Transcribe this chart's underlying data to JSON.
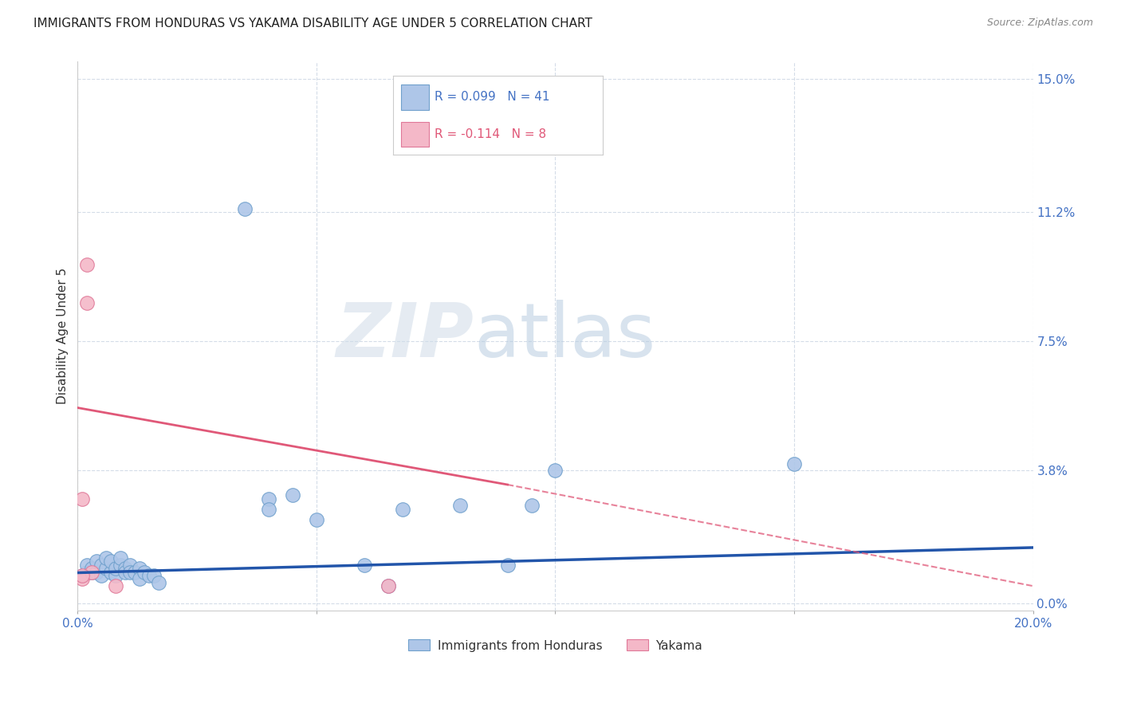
{
  "title": "IMMIGRANTS FROM HONDURAS VS YAKAMA DISABILITY AGE UNDER 5 CORRELATION CHART",
  "source": "Source: ZipAtlas.com",
  "ylabel": "Disability Age Under 5",
  "xlim": [
    0.0,
    0.2
  ],
  "ylim": [
    -0.002,
    0.155
  ],
  "ytick_values": [
    0.0,
    0.038,
    0.075,
    0.112,
    0.15
  ],
  "xtick_values": [
    0.0,
    0.05,
    0.1,
    0.15,
    0.2
  ],
  "xtick_labels": [
    "0.0%",
    "",
    "",
    "",
    "20.0%"
  ],
  "legend_entries": [
    {
      "label": "Immigrants from Honduras",
      "R": 0.099,
      "N": 41,
      "color": "#aec6e8",
      "edgecolor": "#6fa0cc"
    },
    {
      "label": "Yakama",
      "R": -0.114,
      "N": 8,
      "color": "#f4b8c8",
      "edgecolor": "#e07898"
    }
  ],
  "blue_scatter": [
    [
      0.001,
      0.008
    ],
    [
      0.002,
      0.009
    ],
    [
      0.002,
      0.011
    ],
    [
      0.003,
      0.009
    ],
    [
      0.003,
      0.01
    ],
    [
      0.004,
      0.009
    ],
    [
      0.004,
      0.012
    ],
    [
      0.005,
      0.008
    ],
    [
      0.005,
      0.011
    ],
    [
      0.006,
      0.01
    ],
    [
      0.006,
      0.013
    ],
    [
      0.007,
      0.009
    ],
    [
      0.007,
      0.012
    ],
    [
      0.008,
      0.008
    ],
    [
      0.008,
      0.01
    ],
    [
      0.009,
      0.011
    ],
    [
      0.009,
      0.013
    ],
    [
      0.01,
      0.01
    ],
    [
      0.01,
      0.009
    ],
    [
      0.011,
      0.011
    ],
    [
      0.011,
      0.009
    ],
    [
      0.012,
      0.009
    ],
    [
      0.013,
      0.01
    ],
    [
      0.013,
      0.007
    ],
    [
      0.014,
      0.009
    ],
    [
      0.015,
      0.008
    ],
    [
      0.016,
      0.008
    ],
    [
      0.017,
      0.006
    ],
    [
      0.035,
      0.113
    ],
    [
      0.04,
      0.03
    ],
    [
      0.04,
      0.027
    ],
    [
      0.045,
      0.031
    ],
    [
      0.05,
      0.024
    ],
    [
      0.06,
      0.011
    ],
    [
      0.065,
      0.005
    ],
    [
      0.068,
      0.027
    ],
    [
      0.08,
      0.028
    ],
    [
      0.09,
      0.011
    ],
    [
      0.095,
      0.028
    ],
    [
      0.1,
      0.038
    ],
    [
      0.15,
      0.04
    ]
  ],
  "pink_scatter": [
    [
      0.001,
      0.007
    ],
    [
      0.001,
      0.03
    ],
    [
      0.002,
      0.097
    ],
    [
      0.002,
      0.086
    ],
    [
      0.003,
      0.009
    ],
    [
      0.008,
      0.005
    ],
    [
      0.065,
      0.005
    ],
    [
      0.001,
      0.008
    ]
  ],
  "blue_line": {
    "x0": 0.0,
    "y0": 0.0088,
    "x1": 0.2,
    "y1": 0.016
  },
  "pink_solid_line": {
    "x0": 0.0,
    "y0": 0.056,
    "x1": 0.09,
    "y1": 0.034
  },
  "pink_dashed_line": {
    "x0": 0.09,
    "y0": 0.034,
    "x1": 0.2,
    "y1": 0.005
  },
  "watermark_zip": "ZIP",
  "watermark_atlas": "atlas",
  "title_fontsize": 11,
  "source_fontsize": 9,
  "tick_label_color": "#4472c4",
  "grid_color": "#d4dce8",
  "background_color": "#ffffff"
}
